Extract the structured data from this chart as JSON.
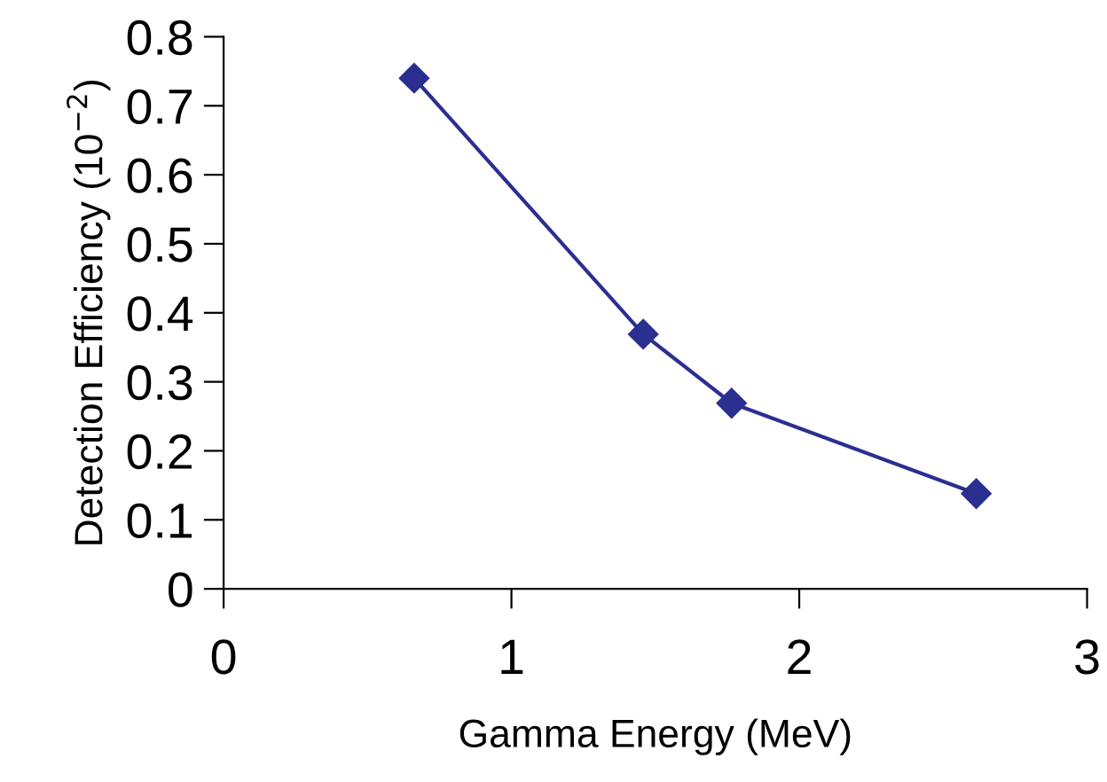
{
  "chart_data": {
    "type": "line",
    "xlabel": "Gamma Energy (MeV)",
    "ylabel": "Detection Efficiency (10$^{−2}$)",
    "x": [
      0.662,
      1.458,
      1.765,
      2.615
    ],
    "series": [
      {
        "color": "#2b2f8f",
        "values": [
          0.74,
          0.369,
          0.269,
          0.138
        ]
      }
    ],
    "xlim": [
      0,
      3
    ],
    "xticks": [
      0,
      1,
      2,
      3
    ],
    "ylim": [
      0,
      0.8
    ],
    "yticks": [
      0,
      0.1,
      0.2,
      0.3,
      0.4,
      0.5,
      0.6,
      0.7,
      0.8
    ],
    "marker": "diamond",
    "line_style": "solid",
    "grid": false,
    "legend": false
  }
}
